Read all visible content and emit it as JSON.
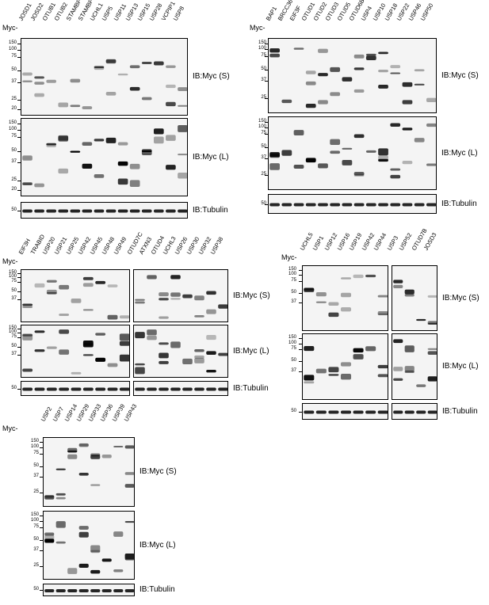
{
  "myc_prefix": "Myc-",
  "tubulin_mw": "50",
  "panels": [
    {
      "id": "panel-a",
      "lanes": [
        "JOSD1",
        "JOSD2",
        "OTUB1",
        "OTUB2",
        "STAMBP",
        "STAMBPL1",
        "UCHL1",
        "USP5",
        "USP11",
        "USP13",
        "USP15",
        "USP28",
        "VCPIP1",
        "USP8"
      ],
      "subgroups": [
        14
      ],
      "blots": [
        {
          "label": "IB:Myc (S)",
          "mw": [
            "150",
            "100",
            "75",
            "50",
            "37",
            "25",
            "20"
          ]
        },
        {
          "label": "IB:Myc (L)",
          "mw": [
            "150",
            "100",
            "75",
            "50",
            "37",
            "25",
            "20"
          ]
        },
        {
          "label": "IB:Tubulin",
          "mw": [
            "50"
          ]
        }
      ]
    },
    {
      "id": "panel-b",
      "lanes": [
        "BAP1",
        "BRCC36",
        "EIF3F",
        "OTUD1",
        "OTUD2",
        "OTUD3",
        "OTUD5",
        "OTUD6B",
        "USP4",
        "USP10",
        "USP18",
        "USP22",
        "USP46",
        "USP50"
      ],
      "subgroups": [
        14
      ],
      "blots": [
        {
          "label": "IB:Myc (S)",
          "mw": [
            "150",
            "100",
            "75",
            "50",
            "37",
            "25"
          ]
        },
        {
          "label": "IB:Myc (L)",
          "mw": [
            "150",
            "100",
            "75",
            "50",
            "37",
            "25"
          ]
        },
        {
          "label": "IB:Tubulin",
          "mw": [
            "50"
          ]
        }
      ]
    },
    {
      "id": "panel-c",
      "lanes": [
        "EIF3H",
        "TRABID",
        "USP20",
        "USP21",
        "USP25",
        "USP42",
        "USP45",
        "USP48",
        "USP49",
        "OTUD7C",
        "ATXN3",
        "OTUD4",
        "UCHL3",
        "USP26",
        "USP30",
        "USP32",
        "USP38"
      ],
      "subgroups": [
        9,
        8
      ],
      "blots": [
        {
          "label": "IB:Myc (S)",
          "mw": [
            "150",
            "100",
            "75",
            "50",
            "37"
          ]
        },
        {
          "label": "IB:Myc (L)",
          "mw": [
            "150",
            "100",
            "75",
            "50",
            "37"
          ]
        },
        {
          "label": "IB:Tubulin",
          "mw": [
            "50"
          ]
        }
      ]
    },
    {
      "id": "panel-d",
      "lanes": [
        "UCHL5",
        "USP1",
        "USP12",
        "USP16",
        "USP19",
        "USP42",
        "USP44",
        "USP3",
        "USP52",
        "OTUD7B",
        "JOSD3"
      ],
      "subgroups": [
        7,
        4
      ],
      "blots": [
        {
          "label": "IB:Myc (S)",
          "mw": [
            "150",
            "100",
            "75",
            "50",
            "37"
          ]
        },
        {
          "label": "IB:Myc (L)",
          "mw": [
            "150",
            "100",
            "75",
            "50",
            "37"
          ]
        },
        {
          "label": "IB:Tubulin",
          "mw": [
            "50"
          ]
        }
      ]
    },
    {
      "id": "panel-e",
      "lanes": [
        "USP2",
        "USP7",
        "USP14",
        "USP29",
        "USP33",
        "USP36",
        "USP39",
        "USP43"
      ],
      "subgroups": [
        8
      ],
      "blots": [
        {
          "label": "IB:Myc (S)",
          "mw": [
            "150",
            "100",
            "75",
            "50",
            "37",
            "25"
          ]
        },
        {
          "label": "IB:Myc (L)",
          "mw": [
            "150",
            "100",
            "75",
            "50",
            "37",
            "25"
          ]
        },
        {
          "label": "IB:Tubulin",
          "mw": [
            "50"
          ]
        }
      ]
    }
  ]
}
